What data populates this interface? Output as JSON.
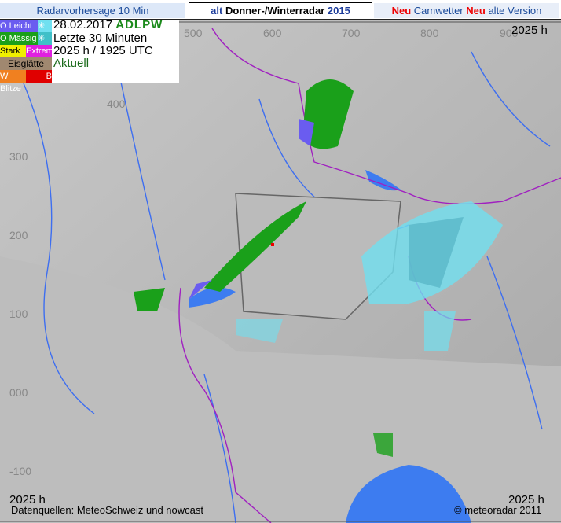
{
  "tabs": {
    "radar_forecast": "Radarvorhersage 10 Min",
    "winter_radar": {
      "alt": "alt",
      "label": "Donner-/Winterradar",
      "year": "2015"
    },
    "camwetter": {
      "neu": "Neu",
      "label": "Camwetter"
    },
    "old_version": {
      "neu": "Neu",
      "label": "alte Version"
    }
  },
  "legend": {
    "light": "O Leicht",
    "moderate": "O Mässig",
    "strong": "Stark",
    "extreme": "Extrem",
    "ice": "Eisglätte",
    "lightning_w": "W Blitze",
    "lightning_b": "B",
    "colors": {
      "light": "#6a5cf0",
      "moderate": "#1aa01a",
      "strong": "#f0f000",
      "extreme": "#e020e0",
      "ice": "#a08870",
      "lightning_w": "#f08020",
      "lightning_b": "#e00000",
      "snow": "#70e0f0"
    }
  },
  "info": {
    "date": "28.02.2017",
    "code": "ADLPW",
    "period": "Letzte 30 Minuten",
    "time": "2025 h / 1925 UTC",
    "status": "Aktuell"
  },
  "axes": {
    "x": [
      "500",
      "600",
      "700",
      "800",
      "900"
    ],
    "y": [
      "400",
      "300",
      "200",
      "100",
      "000",
      "-100"
    ]
  },
  "map": {
    "time_top_right": "2025 h",
    "time_bottom_left": "2025 h",
    "time_bottom_right": "2025 h",
    "source": "Datenquellen: MeteoSchweiz und nowcast",
    "copyright": "© meteoradar 2011"
  }
}
